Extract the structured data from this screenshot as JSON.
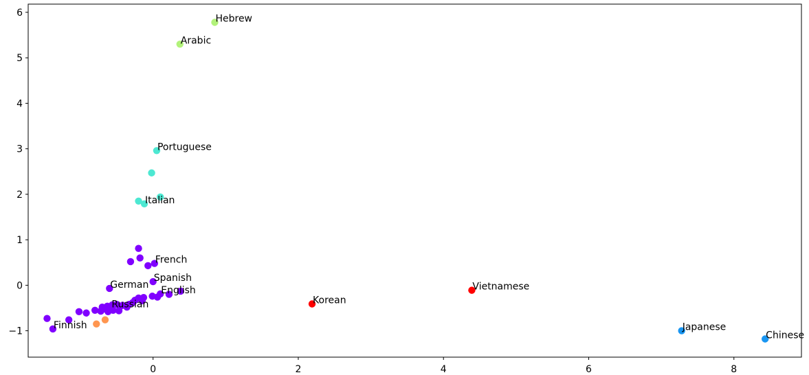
{
  "chart_data": {
    "type": "scatter",
    "title": "",
    "xlabel": "",
    "ylabel": "",
    "xlim": [
      -1.72,
      8.93
    ],
    "ylim": [
      -1.58,
      6.18
    ],
    "x_ticks": [
      0,
      2,
      4,
      6,
      8
    ],
    "y_ticks": [
      -1,
      0,
      1,
      2,
      3,
      4,
      5,
      6
    ],
    "grid": false,
    "legend": "none",
    "colors": {
      "purple": "#8000ff",
      "teal": "#4de8d2",
      "lightgreen": "#b2f27a",
      "red": "#ff0000",
      "orange": "#ff9650",
      "blue": "#1996f2"
    },
    "points": [
      {
        "x": 0.85,
        "y": 5.78,
        "color": "lightgreen",
        "label": "Hebrew"
      },
      {
        "x": 0.37,
        "y": 5.3,
        "color": "lightgreen",
        "label": "Arabic"
      },
      {
        "x": 0.05,
        "y": 2.96,
        "color": "teal",
        "label": "Portuguese"
      },
      {
        "x": -0.02,
        "y": 2.47,
        "color": "teal",
        "label": ""
      },
      {
        "x": 0.1,
        "y": 1.94,
        "color": "teal",
        "label": ""
      },
      {
        "x": -0.2,
        "y": 1.85,
        "color": "teal",
        "label": ""
      },
      {
        "x": -0.12,
        "y": 1.79,
        "color": "teal",
        "label": "Italian"
      },
      {
        "x": -0.2,
        "y": 0.81,
        "color": "purple",
        "label": ""
      },
      {
        "x": -0.18,
        "y": 0.6,
        "color": "purple",
        "label": ""
      },
      {
        "x": -0.31,
        "y": 0.52,
        "color": "purple",
        "label": ""
      },
      {
        "x": 0.02,
        "y": 0.48,
        "color": "purple",
        "label": "French"
      },
      {
        "x": -0.07,
        "y": 0.43,
        "color": "purple",
        "label": ""
      },
      {
        "x": 0.0,
        "y": 0.08,
        "color": "purple",
        "label": "Spanish"
      },
      {
        "x": -0.6,
        "y": -0.07,
        "color": "purple",
        "label": "German"
      },
      {
        "x": 0.38,
        "y": -0.13,
        "color": "purple",
        "label": ""
      },
      {
        "x": 0.1,
        "y": -0.19,
        "color": "purple",
        "label": "English"
      },
      {
        "x": 0.22,
        "y": -0.2,
        "color": "purple",
        "label": ""
      },
      {
        "x": -0.01,
        "y": -0.24,
        "color": "purple",
        "label": ""
      },
      {
        "x": 0.06,
        "y": -0.26,
        "color": "purple",
        "label": ""
      },
      {
        "x": -0.13,
        "y": -0.27,
        "color": "purple",
        "label": ""
      },
      {
        "x": -0.2,
        "y": -0.28,
        "color": "purple",
        "label": ""
      },
      {
        "x": -0.25,
        "y": -0.33,
        "color": "purple",
        "label": ""
      },
      {
        "x": -0.15,
        "y": -0.34,
        "color": "purple",
        "label": ""
      },
      {
        "x": -0.28,
        "y": -0.38,
        "color": "purple",
        "label": ""
      },
      {
        "x": -0.33,
        "y": -0.42,
        "color": "purple",
        "label": ""
      },
      {
        "x": -0.5,
        "y": -0.42,
        "color": "purple",
        "label": ""
      },
      {
        "x": -0.56,
        "y": -0.43,
        "color": "purple",
        "label": ""
      },
      {
        "x": -0.42,
        "y": -0.44,
        "color": "purple",
        "label": ""
      },
      {
        "x": -0.45,
        "y": -0.46,
        "color": "purple",
        "label": ""
      },
      {
        "x": -0.63,
        "y": -0.46,
        "color": "purple",
        "label": ""
      },
      {
        "x": -0.7,
        "y": -0.48,
        "color": "purple",
        "label": ""
      },
      {
        "x": -0.36,
        "y": -0.48,
        "color": "purple",
        "label": ""
      },
      {
        "x": -0.58,
        "y": -0.5,
        "color": "purple",
        "label": "Russian"
      },
      {
        "x": -0.68,
        "y": -0.52,
        "color": "purple",
        "label": ""
      },
      {
        "x": -0.8,
        "y": -0.55,
        "color": "purple",
        "label": ""
      },
      {
        "x": -0.55,
        "y": -0.55,
        "color": "purple",
        "label": ""
      },
      {
        "x": -0.47,
        "y": -0.56,
        "color": "purple",
        "label": ""
      },
      {
        "x": -0.72,
        "y": -0.57,
        "color": "purple",
        "label": ""
      },
      {
        "x": -0.62,
        "y": -0.58,
        "color": "purple",
        "label": ""
      },
      {
        "x": -1.02,
        "y": -0.58,
        "color": "purple",
        "label": ""
      },
      {
        "x": -0.92,
        "y": -0.61,
        "color": "purple",
        "label": ""
      },
      {
        "x": -1.46,
        "y": -0.73,
        "color": "purple",
        "label": ""
      },
      {
        "x": -1.16,
        "y": -0.76,
        "color": "purple",
        "label": ""
      },
      {
        "x": -0.66,
        "y": -0.76,
        "color": "orange",
        "label": ""
      },
      {
        "x": -0.78,
        "y": -0.85,
        "color": "orange",
        "label": ""
      },
      {
        "x": -1.38,
        "y": -0.96,
        "color": "purple",
        "label": "Finnish"
      },
      {
        "x": 2.19,
        "y": -0.41,
        "color": "red",
        "label": "Korean"
      },
      {
        "x": 4.39,
        "y": -0.11,
        "color": "red",
        "label": "Vietnamese"
      },
      {
        "x": 7.28,
        "y": -1.0,
        "color": "blue",
        "label": "Japanese"
      },
      {
        "x": 8.43,
        "y": -1.18,
        "color": "blue",
        "label": "Chinese"
      }
    ]
  }
}
